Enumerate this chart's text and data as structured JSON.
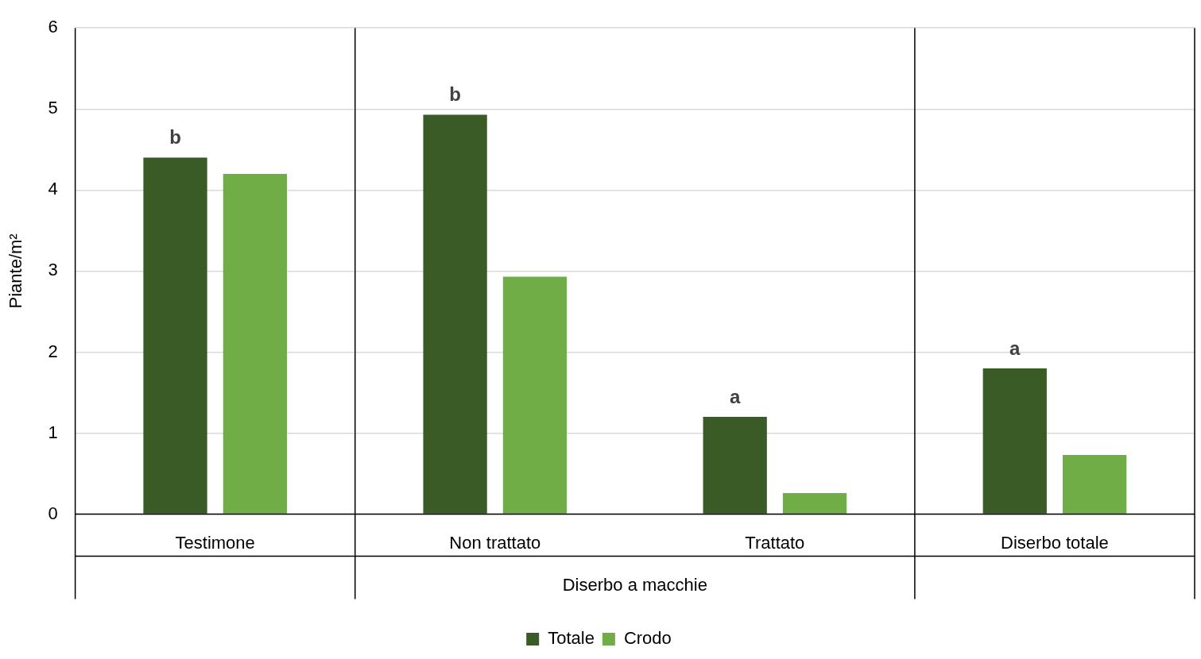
{
  "chart_data": {
    "type": "bar",
    "ylabel": "Piante/m²",
    "categories": [
      "Testimone",
      "Non trattato",
      "Trattato",
      "Diserbo totale"
    ],
    "series": [
      {
        "name": "Totale",
        "color": "#3a5a26",
        "values": [
          4.4,
          4.93,
          1.2,
          1.8
        ]
      },
      {
        "name": "Crodo",
        "color": "#70ad47",
        "values": [
          4.2,
          2.93,
          0.26,
          0.73
        ]
      }
    ],
    "ylim": [
      0,
      6
    ],
    "yticks": [
      0,
      1,
      2,
      3,
      4,
      5,
      6
    ],
    "grid": "y",
    "legend": "bottom",
    "annotations": [
      "b",
      "b",
      "a",
      "a",
      "Diserbo a macchie"
    ]
  }
}
